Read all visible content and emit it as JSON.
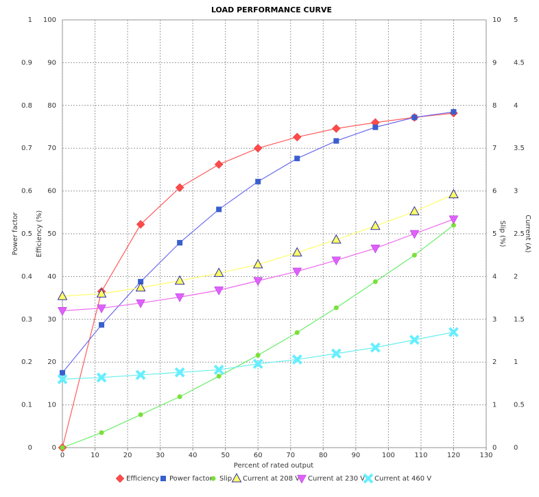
{
  "chart_data": {
    "type": "line-scatter",
    "title": "LOAD PERFORMANCE CURVE",
    "x_label": "Percent of rated output",
    "xlim": [
      0,
      130
    ],
    "xticks": [
      0,
      10,
      20,
      30,
      40,
      50,
      60,
      70,
      80,
      90,
      100,
      110,
      120,
      130
    ],
    "grid": true,
    "legend_position": "bottom",
    "y_axes": [
      {
        "label": "Power factor",
        "side": "left",
        "lim": [
          0,
          1
        ],
        "ticks": [
          0,
          0.1,
          0.2,
          0.3,
          0.4,
          0.5,
          0.6,
          0.7,
          0.8,
          0.9,
          1
        ]
      },
      {
        "label": "Efficiency (%)",
        "side": "left",
        "lim": [
          0,
          100
        ],
        "ticks": [
          0,
          10,
          20,
          30,
          40,
          50,
          60,
          70,
          80,
          90,
          100
        ]
      },
      {
        "label": "Slip (%)",
        "side": "right",
        "lim": [
          0,
          10
        ],
        "ticks": [
          0,
          1,
          2,
          3,
          4,
          5,
          6,
          7,
          8,
          9,
          10
        ]
      },
      {
        "label": "Current (A)",
        "side": "right",
        "lim": [
          0,
          5
        ],
        "ticks": [
          0,
          0.5,
          1,
          1.5,
          2,
          2.5,
          3,
          3.5,
          4,
          4.5,
          5
        ]
      }
    ],
    "x": [
      0,
      12,
      24,
      36,
      48,
      60,
      72,
      84,
      96,
      108,
      120
    ],
    "series": [
      {
        "name": "Efficiency",
        "axis": 1,
        "marker": "diamond",
        "color": "#ff4a4a",
        "line_color": "#ff5a5a",
        "values": [
          0,
          36.5,
          52.2,
          60.8,
          66.2,
          70,
          72.6,
          74.6,
          76,
          77.2,
          78.2
        ]
      },
      {
        "name": "Power factor",
        "axis": 0,
        "marker": "square",
        "color": "#3a5fcd",
        "line_color": "#6a6aee",
        "values": [
          0.175,
          0.287,
          0.388,
          0.479,
          0.557,
          0.622,
          0.676,
          0.717,
          0.749,
          0.772,
          0.785
        ]
      },
      {
        "name": "Slip",
        "axis": 2,
        "marker": "circle",
        "color": "#7be03a",
        "line_color": "#66ee66",
        "values": [
          0,
          0.35,
          0.77,
          1.19,
          1.67,
          2.16,
          2.69,
          3.27,
          3.88,
          4.5,
          5.2
        ]
      },
      {
        "name": "Current at 208 V",
        "axis": 3,
        "marker": "triangle-up",
        "color": "#ffff66",
        "line_color": "#ffff66",
        "values": [
          1.77,
          1.8,
          1.87,
          1.95,
          2.04,
          2.14,
          2.28,
          2.43,
          2.59,
          2.76,
          2.96
        ]
      },
      {
        "name": "Current at 230 V",
        "axis": 3,
        "marker": "triangle-down",
        "color": "#e060ff",
        "line_color": "#ee66ee",
        "values": [
          1.6,
          1.63,
          1.69,
          1.76,
          1.84,
          1.95,
          2.06,
          2.19,
          2.33,
          2.5,
          2.67
        ]
      },
      {
        "name": "Current at 460 V",
        "axis": 3,
        "marker": "cross",
        "color": "#66eeff",
        "line_color": "#66eeee",
        "values": [
          0.8,
          0.82,
          0.85,
          0.88,
          0.91,
          0.98,
          1.03,
          1.1,
          1.17,
          1.26,
          1.35
        ]
      }
    ]
  }
}
